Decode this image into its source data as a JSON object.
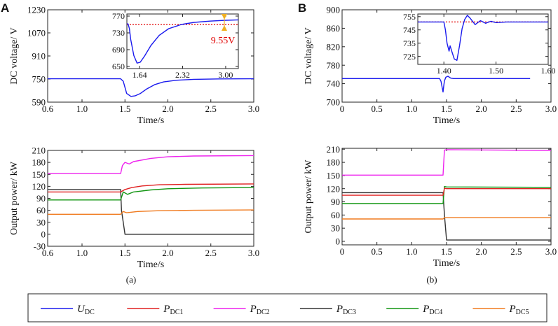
{
  "figure": {
    "panel_a_letter": "A",
    "panel_b_letter": "B",
    "caption_a": "(a)",
    "caption_b": "(b)",
    "colors": {
      "UDC": "#1a1aee",
      "PDC1": "#e02020",
      "PDC2": "#ee22ee",
      "PDC3": "#333333",
      "PDC4": "#129512",
      "PDC5": "#f07a1e",
      "ref": "#e00000",
      "marker": "#f0b020"
    }
  },
  "legend": [
    {
      "key": "UDC",
      "main": "U",
      "sub": "DC"
    },
    {
      "key": "PDC1",
      "main": "P",
      "sub": "DC1"
    },
    {
      "key": "PDC2",
      "main": "P",
      "sub": "DC2"
    },
    {
      "key": "PDC3",
      "main": "P",
      "sub": "DC3"
    },
    {
      "key": "PDC4",
      "main": "P",
      "sub": "DC4"
    },
    {
      "key": "PDC5",
      "main": "P",
      "sub": "DC5"
    }
  ],
  "chart_data": [
    {
      "id": "a-voltage",
      "type": "line",
      "xlabel": "Time/s",
      "ylabel": "DC voltage/ V",
      "xlim": [
        0.6,
        3.0
      ],
      "ylim": [
        590,
        1230
      ],
      "xticks": [
        "0.6",
        "1.0",
        "1.5",
        "2.0",
        "2.5",
        "3.0"
      ],
      "yticks": [
        "590",
        "750",
        "910",
        "1070",
        "1230"
      ],
      "series": [
        {
          "name": "UDC",
          "key": "UDC",
          "x": [
            0.6,
            1.0,
            1.45,
            1.48,
            1.52,
            1.57,
            1.62,
            1.68,
            1.75,
            1.85,
            1.95,
            2.1,
            2.3,
            2.6,
            3.0
          ],
          "y": [
            752,
            752,
            752,
            735,
            650,
            630,
            634,
            650,
            680,
            712,
            730,
            742,
            748,
            751,
            752
          ]
        }
      ]
    },
    {
      "id": "a-voltage-inset",
      "type": "line",
      "xlim": [
        1.44,
        3.2
      ],
      "ylim": [
        645,
        775
      ],
      "xticks": [
        "1.64",
        "2.32",
        "3.00"
      ],
      "yticks": [
        "650",
        "690",
        "730",
        "770"
      ],
      "annotation": "9.55V",
      "ref_value": 750,
      "series": [
        {
          "name": "UDC",
          "key": "UDC",
          "x": [
            1.44,
            1.46,
            1.48,
            1.5,
            1.55,
            1.6,
            1.65,
            1.72,
            1.82,
            1.95,
            2.1,
            2.3,
            2.5,
            2.75,
            3.0,
            3.2
          ],
          "y": [
            752,
            751,
            740,
            715,
            676,
            658,
            660,
            675,
            700,
            724,
            740,
            750,
            755,
            758,
            760,
            761
          ]
        }
      ]
    },
    {
      "id": "b-voltage",
      "type": "line",
      "xlabel": "Time/s",
      "ylabel": "DC voltage/ V",
      "xlim": [
        0.0,
        3.0
      ],
      "ylim": [
        700,
        900
      ],
      "xticks": [
        "0",
        "0.5",
        "1.0",
        "1.5",
        "2.0",
        "2.5",
        "3.0"
      ],
      "yticks": [
        "700",
        "740",
        "780",
        "820",
        "860",
        "900"
      ],
      "series": [
        {
          "name": "UDC",
          "key": "UDC",
          "x": [
            0.0,
            1.4,
            1.42,
            1.43,
            1.44,
            1.45,
            1.46,
            1.47,
            1.49,
            1.52,
            1.56,
            1.6,
            2.0,
            2.7
          ],
          "y": [
            751,
            751,
            745,
            738,
            730,
            722,
            735,
            746,
            754,
            756,
            752,
            751,
            751,
            751
          ]
        }
      ]
    },
    {
      "id": "b-voltage-inset",
      "type": "line",
      "xlim": [
        1.35,
        1.6
      ],
      "ylim": [
        719,
        757
      ],
      "xticks": [
        "1.40",
        "1.50",
        "1.60"
      ],
      "yticks": [
        "725",
        "735",
        "745",
        "755"
      ],
      "ref_value": 751,
      "series": [
        {
          "name": "UDC",
          "key": "UDC",
          "x": [
            1.35,
            1.4,
            1.403,
            1.406,
            1.41,
            1.412,
            1.415,
            1.42,
            1.425,
            1.43,
            1.435,
            1.44,
            1.445,
            1.45,
            1.46,
            1.47,
            1.48,
            1.49,
            1.5,
            1.52,
            1.55,
            1.6
          ],
          "y": [
            751,
            751,
            745,
            735,
            729,
            733,
            729,
            723,
            722,
            733,
            746,
            753,
            756,
            754,
            749,
            752,
            750,
            751.5,
            750.5,
            751,
            751,
            751
          ]
        }
      ]
    },
    {
      "id": "a-power",
      "type": "line",
      "xlabel": "Time/s",
      "ylabel": "Output power/ kW",
      "xlim": [
        0.6,
        3.0
      ],
      "ylim": [
        -30,
        210
      ],
      "xticks": [
        "0.6",
        "1.0",
        "1.5",
        "2.0",
        "2.5",
        "3.0"
      ],
      "yticks": [
        "-30",
        "0",
        "30",
        "60",
        "90",
        "120",
        "150",
        "180",
        "210"
      ],
      "series": [
        {
          "name": "PDC2",
          "key": "PDC2",
          "x": [
            0.6,
            1.45,
            1.47,
            1.5,
            1.55,
            1.6,
            1.8,
            2.0,
            2.3,
            3.0
          ],
          "y": [
            152,
            152,
            172,
            180,
            176,
            182,
            190,
            194,
            196,
            197
          ]
        },
        {
          "name": "PDC3",
          "key": "PDC3",
          "x": [
            0.6,
            1.45,
            1.46,
            1.5,
            3.0
          ],
          "y": [
            112,
            112,
            60,
            0,
            0
          ]
        },
        {
          "name": "PDC1",
          "key": "PDC1",
          "x": [
            0.6,
            1.45,
            1.5,
            1.58,
            1.7,
            1.9,
            2.2,
            3.0
          ],
          "y": [
            106,
            106,
            112,
            117,
            121,
            124,
            125,
            126
          ]
        },
        {
          "name": "PDC4",
          "key": "PDC4",
          "x": [
            0.6,
            1.45,
            1.48,
            1.53,
            1.6,
            1.8,
            2.0,
            2.4,
            3.0
          ],
          "y": [
            86,
            86,
            106,
            100,
            106,
            111,
            114,
            116,
            117
          ]
        },
        {
          "name": "PDC5",
          "key": "PDC5",
          "x": [
            0.6,
            1.45,
            1.48,
            1.52,
            1.65,
            1.9,
            2.3,
            3.0
          ],
          "y": [
            50,
            50,
            57,
            54,
            57,
            59,
            60,
            61
          ]
        }
      ]
    },
    {
      "id": "b-power",
      "type": "line",
      "xlabel": "Time/s",
      "ylabel": "Output power/ kW",
      "xlim": [
        0.0,
        3.0
      ],
      "ylim": [
        -8,
        212
      ],
      "xticks": [
        "0",
        "0.5",
        "1.0",
        "1.5",
        "2.0",
        "2.5",
        "3.0"
      ],
      "yticks": [
        "0",
        "30",
        "60",
        "90",
        "120",
        "150",
        "180",
        "210"
      ],
      "series": [
        {
          "name": "PDC2",
          "key": "PDC2",
          "x": [
            0.0,
            1.45,
            1.47,
            1.5,
            3.0
          ],
          "y": [
            151,
            151,
            208,
            209,
            207
          ]
        },
        {
          "name": "PDC3",
          "key": "PDC3",
          "x": [
            0.0,
            1.45,
            1.47,
            1.5,
            3.0
          ],
          "y": [
            111,
            111,
            60,
            3,
            3
          ]
        },
        {
          "name": "PDC4",
          "key": "PDC4",
          "x": [
            0.0,
            1.45,
            1.47,
            1.5,
            3.0
          ],
          "y": [
            86,
            86,
            125,
            124,
            123
          ]
        },
        {
          "name": "PDC1",
          "key": "PDC1",
          "x": [
            0.0,
            1.45,
            1.47,
            1.5,
            3.0
          ],
          "y": [
            105,
            105,
            121,
            120,
            120
          ]
        },
        {
          "name": "PDC5",
          "key": "PDC5",
          "x": [
            0.0,
            1.45,
            1.47,
            1.5,
            3.0
          ],
          "y": [
            51,
            51,
            54,
            54,
            54
          ]
        }
      ]
    }
  ]
}
